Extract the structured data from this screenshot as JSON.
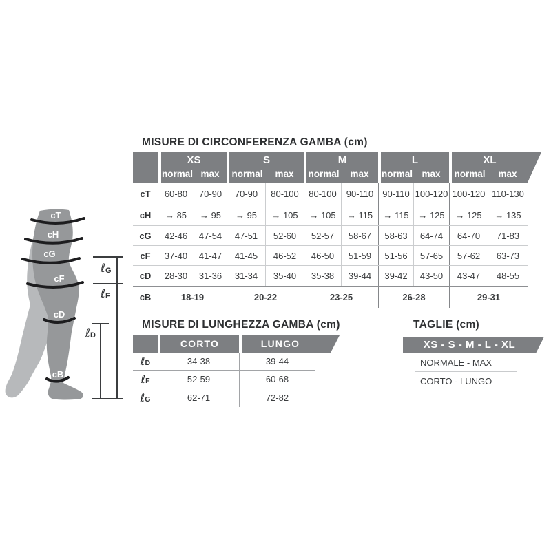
{
  "circumference_table": {
    "title": "MISURE DI CIRCONFERENZA GAMBA (cm)",
    "sizes": [
      "XS",
      "S",
      "M",
      "L",
      "XL"
    ],
    "sub_headers": [
      "normal",
      "max"
    ],
    "rows": [
      {
        "label": "cT",
        "values": [
          "60-80",
          "70-90",
          "70-90",
          "80-100",
          "80-100",
          "90-110",
          "90-110",
          "100-120",
          "100-120",
          "110-130"
        ]
      },
      {
        "label": "cH",
        "values": [
          "→ 85",
          "→ 95",
          "→ 95",
          "→ 105",
          "→ 105",
          "→ 115",
          "→ 115",
          "→ 125",
          "→ 125",
          "→ 135"
        ]
      },
      {
        "label": "cG",
        "values": [
          "42-46",
          "47-54",
          "47-51",
          "52-60",
          "52-57",
          "58-67",
          "58-63",
          "64-74",
          "64-70",
          "71-83"
        ]
      },
      {
        "label": "cF",
        "values": [
          "37-40",
          "41-47",
          "41-45",
          "46-52",
          "46-50",
          "51-59",
          "51-56",
          "57-65",
          "57-62",
          "63-73"
        ]
      },
      {
        "label": "cD",
        "values": [
          "28-30",
          "31-36",
          "31-34",
          "35-40",
          "35-38",
          "39-44",
          "39-42",
          "43-50",
          "43-47",
          "48-55"
        ]
      }
    ],
    "span_row": {
      "label": "cB",
      "values": [
        "18-19",
        "20-22",
        "23-25",
        "26-28",
        "29-31"
      ]
    }
  },
  "length_table": {
    "title": "MISURE DI LUNGHEZZA GAMBA (cm)",
    "columns": [
      "CORTO",
      "LUNGO"
    ],
    "rows": [
      {
        "script": "ℓ",
        "sub": "D",
        "values": [
          "34-38",
          "39-44"
        ]
      },
      {
        "script": "ℓ",
        "sub": "F",
        "values": [
          "52-59",
          "60-68"
        ]
      },
      {
        "script": "ℓ",
        "sub": "G",
        "values": [
          "62-71",
          "72-82"
        ]
      }
    ]
  },
  "sizes_panel": {
    "title": "TAGLIE (cm)",
    "banner": "XS - S - M - L - XL",
    "line1": "NORMALE - MAX",
    "line2": "CORTO - LUNGO"
  },
  "leg_diagram": {
    "bands": [
      "cT",
      "cH",
      "cG",
      "cF",
      "cD",
      "cB"
    ],
    "length_labels": [
      {
        "script": "ℓ",
        "sub": "G"
      },
      {
        "script": "ℓ",
        "sub": "F"
      },
      {
        "script": "ℓ",
        "sub": "D"
      }
    ]
  },
  "colors": {
    "header_gray": "#7d7f82",
    "front_leg": "#96989a",
    "back_leg": "#b7b9bb",
    "band": "#1d1d1f",
    "text_dark": "#2e3032"
  }
}
